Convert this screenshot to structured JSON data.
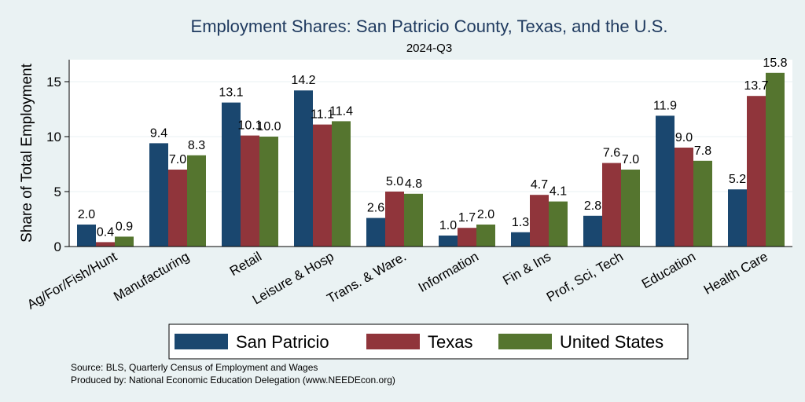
{
  "chart_data": {
    "type": "bar",
    "title": "Employment Shares: San Patricio County, Texas, and the U.S.",
    "subtitle": "2024-Q3",
    "ylabel": "Share of Total Employment",
    "xlabel": "",
    "ylim": [
      0,
      17
    ],
    "yticks": [
      0,
      5,
      10,
      15
    ],
    "grid": true,
    "legend_position": "bottom",
    "categories": [
      "Ag/For/Fish/Hunt",
      "Manufacturing",
      "Retail",
      "Leisure & Hosp",
      "Trans. & Ware.",
      "Information",
      "Fin & Ins",
      "Prof, Sci, Tech",
      "Education",
      "Health Care"
    ],
    "series": [
      {
        "name": "San Patricio",
        "color": "#1a476f",
        "values": [
          2.0,
          9.4,
          13.1,
          14.2,
          2.6,
          1.0,
          1.3,
          2.8,
          11.9,
          5.2
        ],
        "labels": [
          "2.0",
          "9.4",
          "13.1",
          "14.2",
          "2.6",
          "1.0",
          "1.3",
          "2.8",
          "11.9",
          "5.2"
        ]
      },
      {
        "name": "Texas",
        "color": "#90353b",
        "values": [
          0.4,
          7.0,
          10.1,
          11.1,
          5.0,
          1.7,
          4.7,
          7.6,
          9.0,
          13.7
        ],
        "labels": [
          "0.4",
          "7.0",
          "10.1",
          "11.1",
          "5.0",
          "1.7",
          "4.7",
          "7.6",
          "9.0",
          "13.7"
        ]
      },
      {
        "name": "United States",
        "color": "#55752f",
        "values": [
          0.9,
          8.3,
          10.0,
          11.4,
          4.8,
          2.0,
          4.1,
          7.0,
          7.8,
          15.8
        ],
        "labels": [
          "0.9",
          "8.3",
          "10.0",
          "11.4",
          "4.8",
          "2.0",
          "4.1",
          "7.0",
          "7.8",
          "15.8"
        ]
      }
    ]
  },
  "notes": {
    "source": "Source: BLS, Quarterly Census of Employment and Wages",
    "produced_by": "Produced by: National Economic Education Delegation (www.NEEDEcon.org)"
  }
}
